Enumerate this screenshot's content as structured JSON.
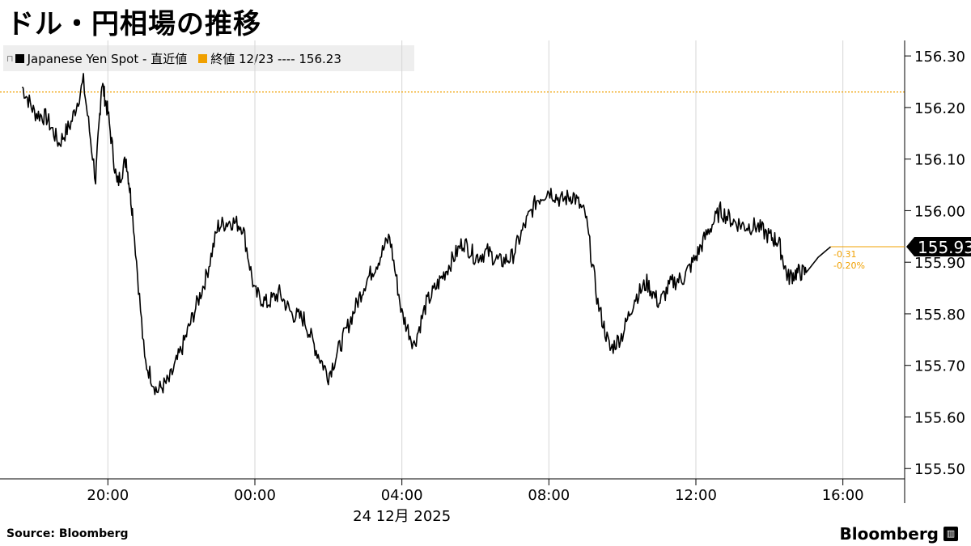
{
  "title": "ドル・円相場の推移",
  "legend": {
    "series_label": "Japanese Yen Spot - 直近値",
    "series_color": "#000000",
    "ref_label": "終値 12/23 ---- 156.23",
    "ref_color": "#f0a000"
  },
  "footer": {
    "source": "Source:  Bloomberg",
    "brand": "Bloomberg",
    "brand_icon": "bloomberg-terminal-icon"
  },
  "chart_data": {
    "type": "line",
    "x_ticks": [
      "20:00",
      "00:00",
      "04:00",
      "08:00",
      "12:00",
      "16:00"
    ],
    "x_date_label": "24 12月  2025",
    "y_ticks": [
      "155.50",
      "155.60",
      "155.70",
      "155.80",
      "155.90",
      "156.00",
      "156.10",
      "156.20",
      "156.30"
    ],
    "ylim": [
      155.48,
      156.33
    ],
    "grid": "vertical",
    "legend_position": "top-left",
    "reference_line": {
      "label": "終値 12/23",
      "value": 156.23
    },
    "last_value": "155.93",
    "change": "-0.31",
    "change_pct": "-0.20%",
    "series": [
      {
        "name": "Japanese Yen Spot",
        "x": [
          "17:40",
          "18:00",
          "18:20",
          "18:40",
          "19:00",
          "19:20",
          "19:40",
          "19:50",
          "20:00",
          "20:15",
          "20:30",
          "20:40",
          "21:00",
          "21:20",
          "21:40",
          "22:00",
          "22:20",
          "22:40",
          "23:00",
          "23:20",
          "23:40",
          "00:00",
          "00:20",
          "00:40",
          "01:00",
          "01:20",
          "01:40",
          "02:00",
          "02:20",
          "02:40",
          "03:00",
          "03:20",
          "03:40",
          "04:00",
          "04:20",
          "04:40",
          "05:00",
          "05:20",
          "05:40",
          "06:00",
          "06:20",
          "06:40",
          "07:00",
          "07:20",
          "07:40",
          "08:00",
          "08:20",
          "08:40",
          "09:00",
          "09:20",
          "09:40",
          "10:00",
          "10:20",
          "10:40",
          "11:00",
          "11:20",
          "11:40",
          "12:00",
          "12:20",
          "12:40",
          "13:00",
          "13:20",
          "13:40",
          "14:00",
          "14:15",
          "14:30",
          "14:45",
          "15:00",
          "15:20",
          "15:40"
        ],
        "values": [
          156.24,
          156.19,
          156.18,
          156.13,
          156.17,
          156.25,
          156.06,
          156.25,
          156.19,
          156.05,
          156.1,
          156.0,
          155.71,
          155.65,
          155.67,
          155.73,
          155.8,
          155.87,
          155.97,
          155.98,
          155.97,
          155.84,
          155.82,
          155.84,
          155.8,
          155.79,
          155.73,
          155.68,
          155.74,
          155.8,
          155.86,
          155.9,
          155.95,
          155.8,
          155.74,
          155.82,
          155.86,
          155.9,
          155.94,
          155.91,
          155.92,
          155.9,
          155.91,
          155.97,
          156.02,
          156.04,
          156.02,
          156.03,
          155.99,
          155.82,
          155.73,
          155.76,
          155.83,
          155.86,
          155.82,
          155.86,
          155.87,
          155.91,
          155.96,
          156.0,
          155.98,
          155.97,
          155.97,
          155.95,
          155.94,
          155.87,
          155.88,
          155.88,
          155.91,
          155.93
        ]
      }
    ]
  }
}
